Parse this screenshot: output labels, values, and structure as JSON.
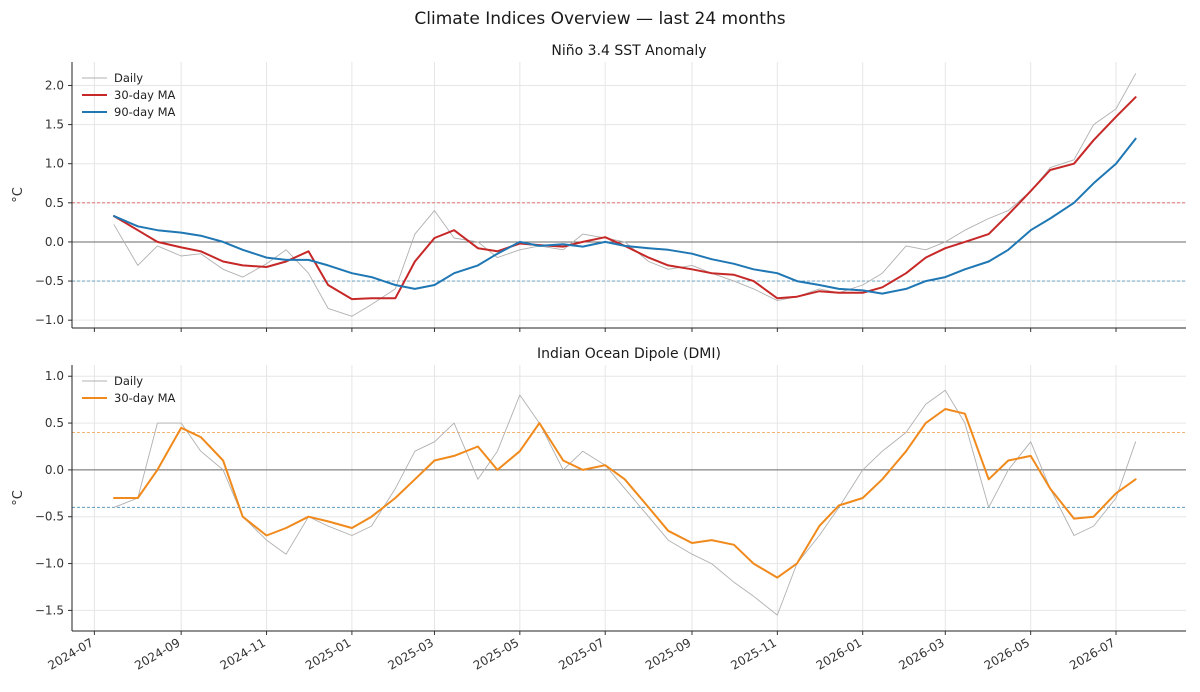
{
  "figure": {
    "title": "Climate Indices Overview — last 24 months",
    "x_ticks": [
      "2024-07",
      "2024-09",
      "2024-11",
      "2025-01",
      "2025-03",
      "2025-05",
      "2025-07",
      "2025-09",
      "2025-11",
      "2026-01",
      "2026-03",
      "2026-05",
      "2026-07"
    ],
    "colors": {
      "daily": "#b0b0b0",
      "ma30_nino": "#c62828",
      "ma90_nino": "#1f77b4",
      "ma30_dmi": "#f08a1c",
      "pos_threshold": "#d9534f",
      "neg_threshold": "#4a90b8",
      "dmi_pos_threshold": "#f0a050",
      "zero": "#555555"
    }
  },
  "chart_data": [
    {
      "type": "line",
      "title": "Niño 3.4 SST Anomaly",
      "ylabel": "°C",
      "xlabel": "",
      "ylim": [
        -1.1,
        2.3
      ],
      "xlim": [
        "2024-06-15",
        "2026-08-20"
      ],
      "y_ticks": [
        "−1.0",
        "−0.5",
        "0.0",
        "0.5",
        "1.0",
        "1.5",
        "2.0"
      ],
      "grid": true,
      "legend_position": "top-left",
      "reference_lines": [
        0.5,
        0.0,
        -0.5
      ],
      "x": [
        "2024-07-15",
        "2024-08-01",
        "2024-08-15",
        "2024-09-01",
        "2024-09-15",
        "2024-10-01",
        "2024-10-15",
        "2024-11-01",
        "2024-11-15",
        "2024-12-01",
        "2024-12-15",
        "2025-01-01",
        "2025-01-15",
        "2025-02-01",
        "2025-02-15",
        "2025-03-01",
        "2025-03-15",
        "2025-04-01",
        "2025-04-15",
        "2025-05-01",
        "2025-05-15",
        "2025-06-01",
        "2025-06-15",
        "2025-07-01",
        "2025-07-15",
        "2025-08-01",
        "2025-08-15",
        "2025-09-01",
        "2025-09-15",
        "2025-10-01",
        "2025-10-15",
        "2025-11-01",
        "2025-11-15",
        "2025-12-01",
        "2025-12-15",
        "2026-01-01",
        "2026-01-15",
        "2026-02-01",
        "2026-02-15",
        "2026-03-01",
        "2026-03-15",
        "2026-04-01",
        "2026-04-15",
        "2026-05-01",
        "2026-05-15",
        "2026-06-01",
        "2026-06-15",
        "2026-07-01",
        "2026-07-15"
      ],
      "series": [
        {
          "name": "Daily",
          "values": [
            0.22,
            -0.3,
            -0.05,
            -0.18,
            -0.15,
            -0.35,
            -0.45,
            -0.28,
            -0.1,
            -0.4,
            -0.85,
            -0.95,
            -0.8,
            -0.6,
            0.1,
            0.4,
            0.05,
            0.0,
            -0.2,
            -0.1,
            -0.05,
            -0.1,
            0.1,
            0.05,
            0.0,
            -0.25,
            -0.35,
            -0.3,
            -0.4,
            -0.5,
            -0.6,
            -0.75,
            -0.7,
            -0.6,
            -0.65,
            -0.55,
            -0.4,
            -0.05,
            -0.1,
            0.0,
            0.15,
            0.3,
            0.4,
            0.65,
            0.95,
            1.05,
            1.5,
            1.7,
            2.15
          ]
        },
        {
          "name": "30-day MA",
          "values": [
            0.33,
            0.15,
            0.0,
            -0.07,
            -0.12,
            -0.25,
            -0.3,
            -0.32,
            -0.25,
            -0.12,
            -0.55,
            -0.73,
            -0.72,
            -0.72,
            -0.25,
            0.05,
            0.15,
            -0.08,
            -0.12,
            -0.02,
            -0.04,
            -0.06,
            0.0,
            0.06,
            -0.05,
            -0.2,
            -0.3,
            -0.35,
            -0.4,
            -0.42,
            -0.5,
            -0.72,
            -0.7,
            -0.63,
            -0.65,
            -0.65,
            -0.58,
            -0.4,
            -0.2,
            -0.08,
            0.0,
            0.1,
            0.35,
            0.65,
            0.92,
            1.0,
            1.3,
            1.6,
            1.85
          ]
        },
        {
          "name": "90-day MA",
          "values": [
            0.33,
            0.2,
            0.15,
            0.12,
            0.08,
            0.0,
            -0.1,
            -0.2,
            -0.23,
            -0.23,
            -0.3,
            -0.4,
            -0.45,
            -0.55,
            -0.6,
            -0.55,
            -0.4,
            -0.3,
            -0.15,
            0.0,
            -0.05,
            -0.03,
            -0.06,
            0.0,
            -0.05,
            -0.08,
            -0.1,
            -0.15,
            -0.22,
            -0.28,
            -0.35,
            -0.4,
            -0.5,
            -0.55,
            -0.6,
            -0.62,
            -0.66,
            -0.6,
            -0.5,
            -0.45,
            -0.35,
            -0.25,
            -0.1,
            0.15,
            0.3,
            0.5,
            0.75,
            1.0,
            1.32
          ]
        }
      ]
    },
    {
      "type": "line",
      "title": "Indian Ocean Dipole (DMI)",
      "ylabel": "°C",
      "xlabel": "",
      "ylim": [
        -1.72,
        1.12
      ],
      "xlim": [
        "2024-06-15",
        "2026-08-20"
      ],
      "y_ticks": [
        "−1.5",
        "−1.0",
        "−0.5",
        "0.0",
        "0.5",
        "1.0"
      ],
      "grid": true,
      "legend_position": "top-left",
      "reference_lines": [
        0.4,
        0.0,
        -0.4
      ],
      "x": [
        "2024-07-15",
        "2024-08-01",
        "2024-08-15",
        "2024-09-01",
        "2024-09-15",
        "2024-10-01",
        "2024-10-15",
        "2024-11-01",
        "2024-11-15",
        "2024-12-01",
        "2024-12-15",
        "2025-01-01",
        "2025-01-15",
        "2025-02-01",
        "2025-02-15",
        "2025-03-01",
        "2025-03-15",
        "2025-04-01",
        "2025-04-15",
        "2025-05-01",
        "2025-05-15",
        "2025-06-01",
        "2025-06-15",
        "2025-07-01",
        "2025-07-15",
        "2025-08-01",
        "2025-08-15",
        "2025-09-01",
        "2025-09-15",
        "2025-10-01",
        "2025-10-15",
        "2025-11-01",
        "2025-11-15",
        "2025-12-01",
        "2025-12-15",
        "2026-01-01",
        "2026-01-15",
        "2026-02-01",
        "2026-02-15",
        "2026-03-01",
        "2026-03-15",
        "2026-04-01",
        "2026-04-15",
        "2026-05-01",
        "2026-05-15",
        "2026-06-01",
        "2026-06-15",
        "2026-07-01",
        "2026-07-15"
      ],
      "series": [
        {
          "name": "Daily",
          "values": [
            -0.4,
            -0.3,
            0.5,
            0.5,
            0.2,
            0.0,
            -0.5,
            -0.75,
            -0.9,
            -0.5,
            -0.6,
            -0.7,
            -0.6,
            -0.2,
            0.2,
            0.3,
            0.5,
            -0.1,
            0.2,
            0.8,
            0.5,
            0.0,
            0.2,
            0.05,
            -0.2,
            -0.5,
            -0.75,
            -0.9,
            -1.0,
            -1.2,
            -1.35,
            -1.55,
            -1.0,
            -0.7,
            -0.4,
            0.0,
            0.2,
            0.4,
            0.7,
            0.85,
            0.5,
            -0.4,
            0.0,
            0.3,
            -0.2,
            -0.7,
            -0.6,
            -0.3,
            0.3
          ]
        },
        {
          "name": "30-day MA",
          "values": [
            -0.3,
            -0.3,
            0.0,
            0.45,
            0.35,
            0.1,
            -0.5,
            -0.7,
            -0.62,
            -0.5,
            -0.55,
            -0.62,
            -0.5,
            -0.3,
            -0.1,
            0.1,
            0.15,
            0.25,
            0.0,
            0.2,
            0.5,
            0.1,
            0.0,
            0.05,
            -0.1,
            -0.4,
            -0.65,
            -0.78,
            -0.75,
            -0.8,
            -1.0,
            -1.15,
            -1.0,
            -0.6,
            -0.38,
            -0.3,
            -0.1,
            0.2,
            0.5,
            0.65,
            0.6,
            -0.1,
            0.1,
            0.15,
            -0.2,
            -0.52,
            -0.5,
            -0.25,
            -0.1
          ]
        }
      ]
    }
  ]
}
